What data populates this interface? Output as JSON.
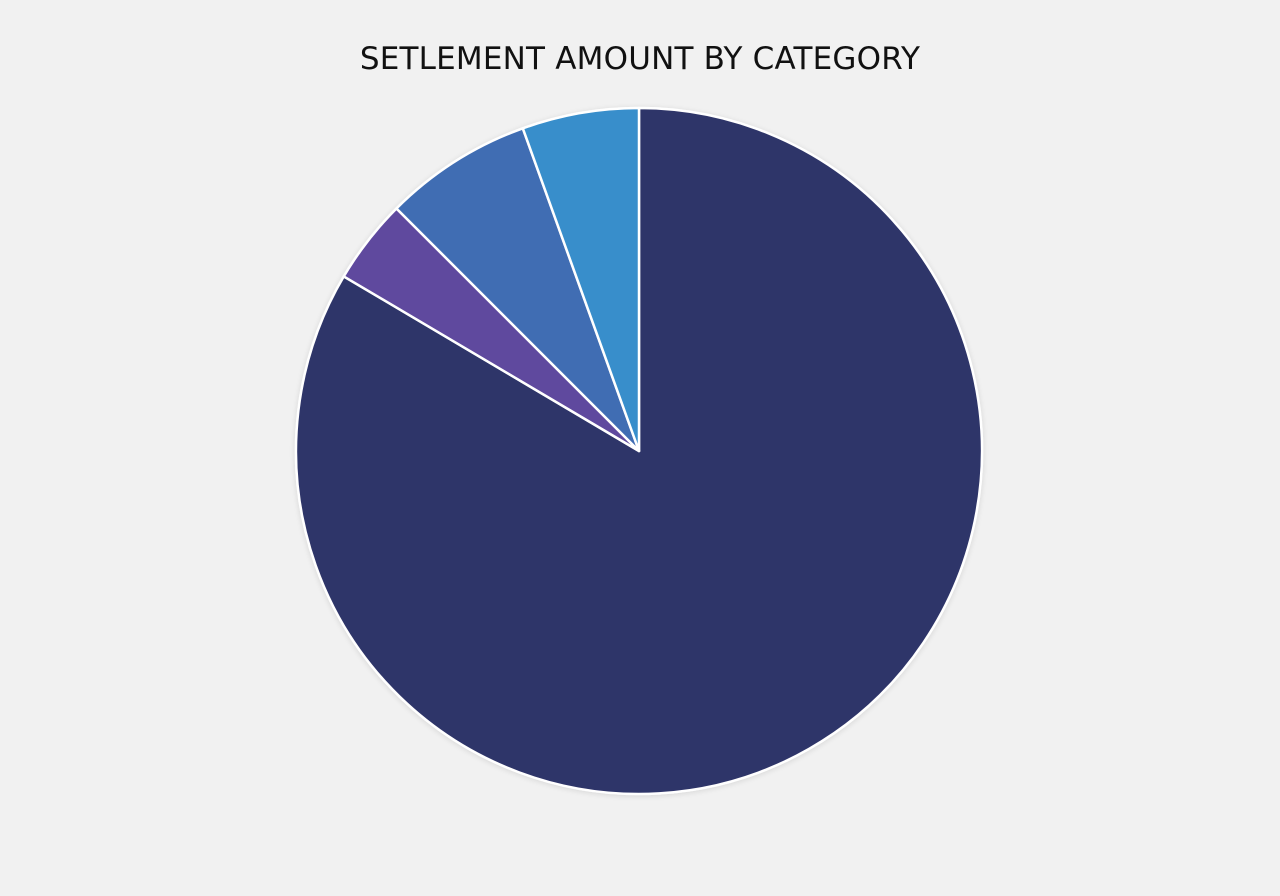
{
  "chart_data": {
    "type": "pie",
    "title": "SETLEMENT AMOUNT BY CATEGORY",
    "start_angle_deg": 0,
    "direction": "clockwise",
    "legend": "none",
    "slices": [
      {
        "value": 83.5,
        "color": "#2f3469"
      },
      {
        "value": 4.0,
        "color": "#5e4a9e"
      },
      {
        "value": 7.0,
        "color": "#3f6db3"
      },
      {
        "value": 5.5,
        "color": "#388ecb"
      }
    ]
  }
}
